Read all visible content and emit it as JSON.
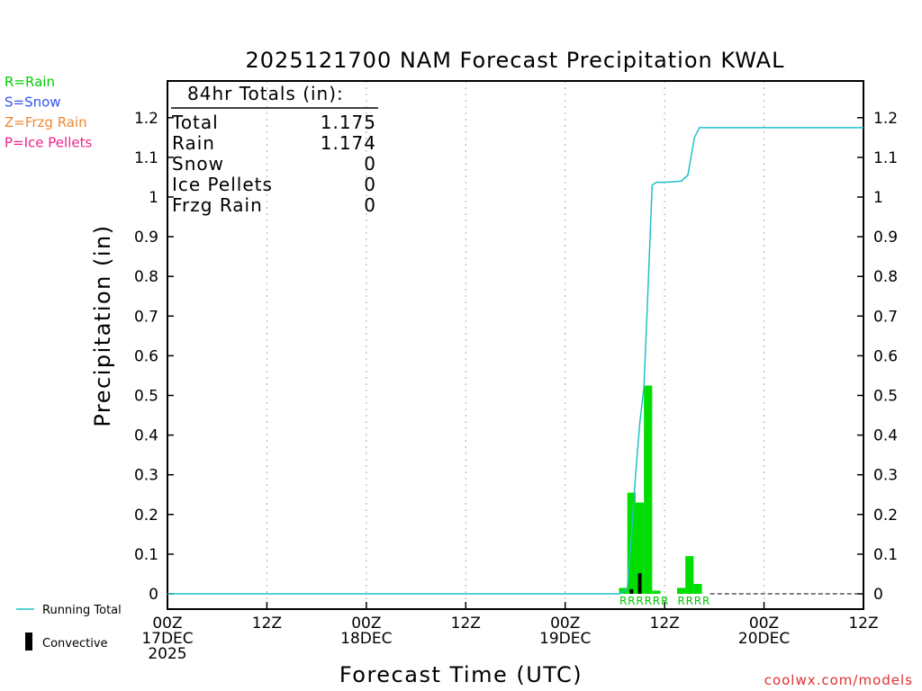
{
  "title": "2025121700 NAM Forecast Precipitation KWAL",
  "xlabel": "Forecast Time (UTC)",
  "ylabel": "Precipitation (in)",
  "watermark": "coolwx.com/models",
  "type_legend": [
    {
      "label": "R=Rain",
      "color": "#00cc00"
    },
    {
      "label": "S=Snow",
      "color": "#3355ee"
    },
    {
      "label": "Z=Frzg Rain",
      "color": "#ee8833"
    },
    {
      "label": "P=Ice Pellets",
      "color": "#ee2288"
    }
  ],
  "bottom_legend": {
    "running_total": "Running Total",
    "convective": "Convective"
  },
  "totals_box": {
    "heading": "84hr Totals (in):",
    "rows": [
      {
        "label": "Total",
        "value": "1.175"
      },
      {
        "label": "Rain",
        "value": "1.174"
      },
      {
        "label": "Snow",
        "value": "0"
      },
      {
        "label": "Ice Pellets",
        "value": "0"
      },
      {
        "label": "Frzg Rain",
        "value": "0"
      }
    ]
  },
  "colors": {
    "rain_bar": "#00dd00",
    "convective": "#000000",
    "running_total": "#20c0c8",
    "precip_type_label": "#00c800"
  },
  "chart_data": {
    "type": "bar",
    "x_unit": "forecast hour",
    "xlim": [
      0,
      84
    ],
    "ylim": [
      0,
      1.3
    ],
    "yticks": [
      0,
      0.1,
      0.2,
      0.3,
      0.4,
      0.5,
      0.6,
      0.7,
      0.8,
      0.9,
      1,
      1.1,
      1.2
    ],
    "ytick_labels": [
      "0",
      "0.1",
      "0.2",
      "0.3",
      "0.4",
      "0.5",
      "0.6",
      "0.7",
      "0.8",
      "0.9",
      "1",
      "1.1",
      "1.2"
    ],
    "xticks": [
      {
        "hour": 0,
        "lines": [
          "00Z",
          "17DEC",
          "2025"
        ]
      },
      {
        "hour": 12,
        "lines": [
          "12Z"
        ]
      },
      {
        "hour": 24,
        "lines": [
          "00Z",
          "18DEC"
        ]
      },
      {
        "hour": 36,
        "lines": [
          "12Z"
        ]
      },
      {
        "hour": 48,
        "lines": [
          "00Z",
          "19DEC"
        ]
      },
      {
        "hour": 60,
        "lines": [
          "12Z"
        ]
      },
      {
        "hour": 72,
        "lines": [
          "00Z",
          "20DEC"
        ]
      },
      {
        "hour": 84,
        "lines": [
          "12Z"
        ]
      }
    ],
    "grid_x": true,
    "precip_bars": {
      "hour": [
        55,
        56,
        57,
        58,
        59,
        62,
        63,
        64
      ],
      "value": [
        0.015,
        0.255,
        0.23,
        0.525,
        0.008,
        0.015,
        0.095,
        0.025
      ]
    },
    "convective_bars": {
      "hour": [
        56,
        57
      ],
      "value": [
        0.012,
        0.052
      ]
    },
    "precip_type_labels": {
      "hour": [
        55,
        56,
        57,
        58,
        59,
        60,
        62,
        63,
        64,
        65
      ],
      "label": [
        "R",
        "R",
        "R",
        "R",
        "R",
        "R",
        "R",
        "R",
        "R",
        "R"
      ]
    },
    "running_total": {
      "hour": [
        0,
        54.5,
        55.5,
        56,
        56.5,
        57,
        57.5,
        58,
        58.5,
        59,
        60,
        62,
        62.8,
        63.6,
        64.2,
        65,
        84
      ],
      "value": [
        0,
        0,
        0.012,
        0.15,
        0.3,
        0.43,
        0.52,
        0.77,
        1.03,
        1.037,
        1.037,
        1.04,
        1.055,
        1.15,
        1.175,
        1.175,
        1.175
      ]
    }
  }
}
